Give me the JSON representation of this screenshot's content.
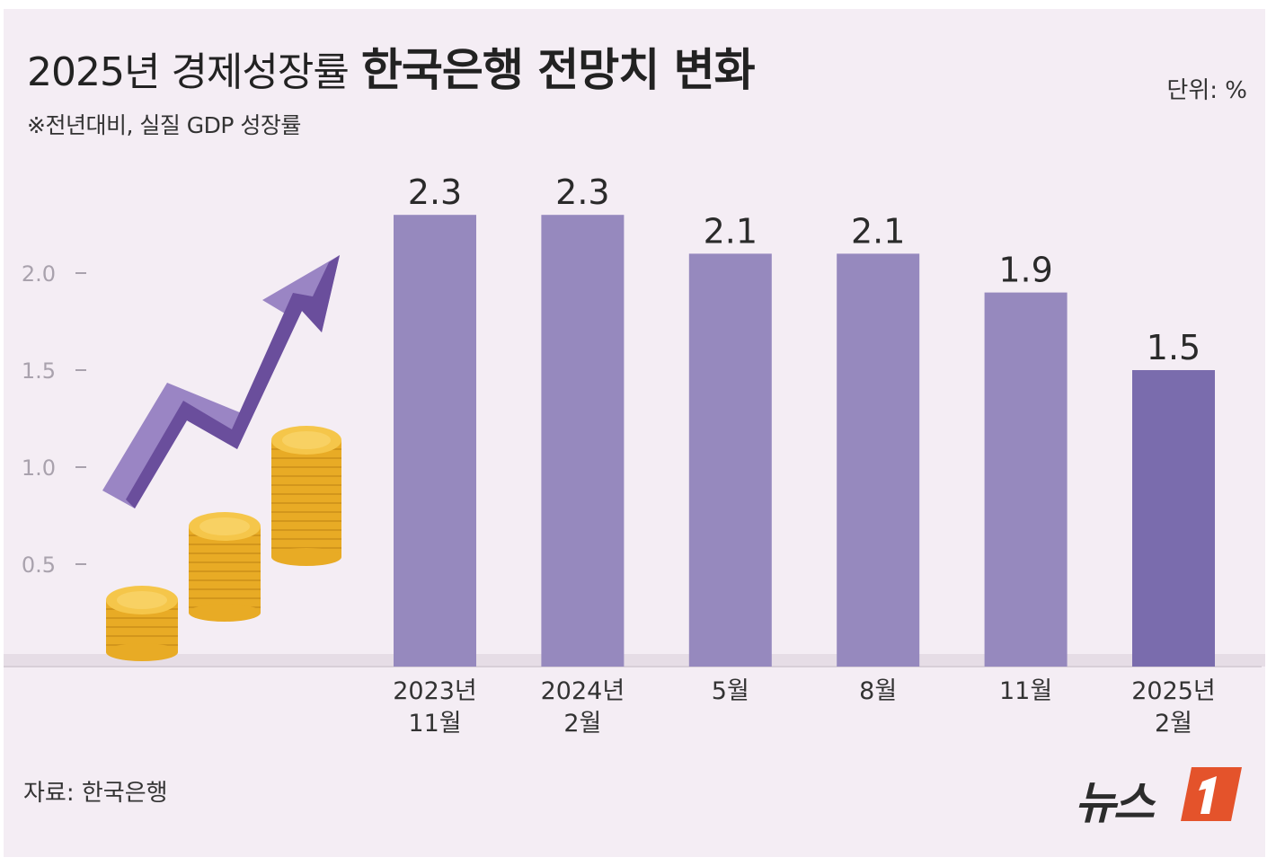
{
  "header": {
    "title_light": "2025년 경제성장률",
    "title_bold": "한국은행 전망치 변화",
    "subtitle": "※전년대비, 실질 GDP 성장률",
    "unit": "단위: %"
  },
  "footer": {
    "source": "자료: 한국은행",
    "logo_text": "뉴스"
  },
  "colors": {
    "bar": "#9689be",
    "bar_highlight": "#7a6cad",
    "background": "#f4edf4",
    "coin": "#f2bd3a",
    "arrow": "#8e76b6"
  },
  "chart_data": {
    "type": "bar",
    "title": "2025년 경제성장률 한국은행 전망치 변화",
    "subtitle": "※전년대비, 실질 GDP 성장률",
    "ylabel": "단위: %",
    "ylim": [
      0,
      2.5
    ],
    "yticks": [
      "0.5",
      "1.0",
      "1.5",
      "2.0"
    ],
    "ytick_values": [
      0.5,
      1.0,
      1.5,
      2.0
    ],
    "categories": [
      [
        "2023년",
        "11월"
      ],
      [
        "2024년",
        "2월"
      ],
      [
        "5월"
      ],
      [
        "8월"
      ],
      [
        "11월"
      ],
      [
        "2025년",
        "2월"
      ]
    ],
    "values": [
      2.3,
      2.3,
      2.1,
      2.1,
      1.9,
      1.5
    ],
    "value_labels": [
      "2.3",
      "2.3",
      "2.1",
      "2.1",
      "1.9",
      "1.5"
    ],
    "highlight_index": 5
  }
}
